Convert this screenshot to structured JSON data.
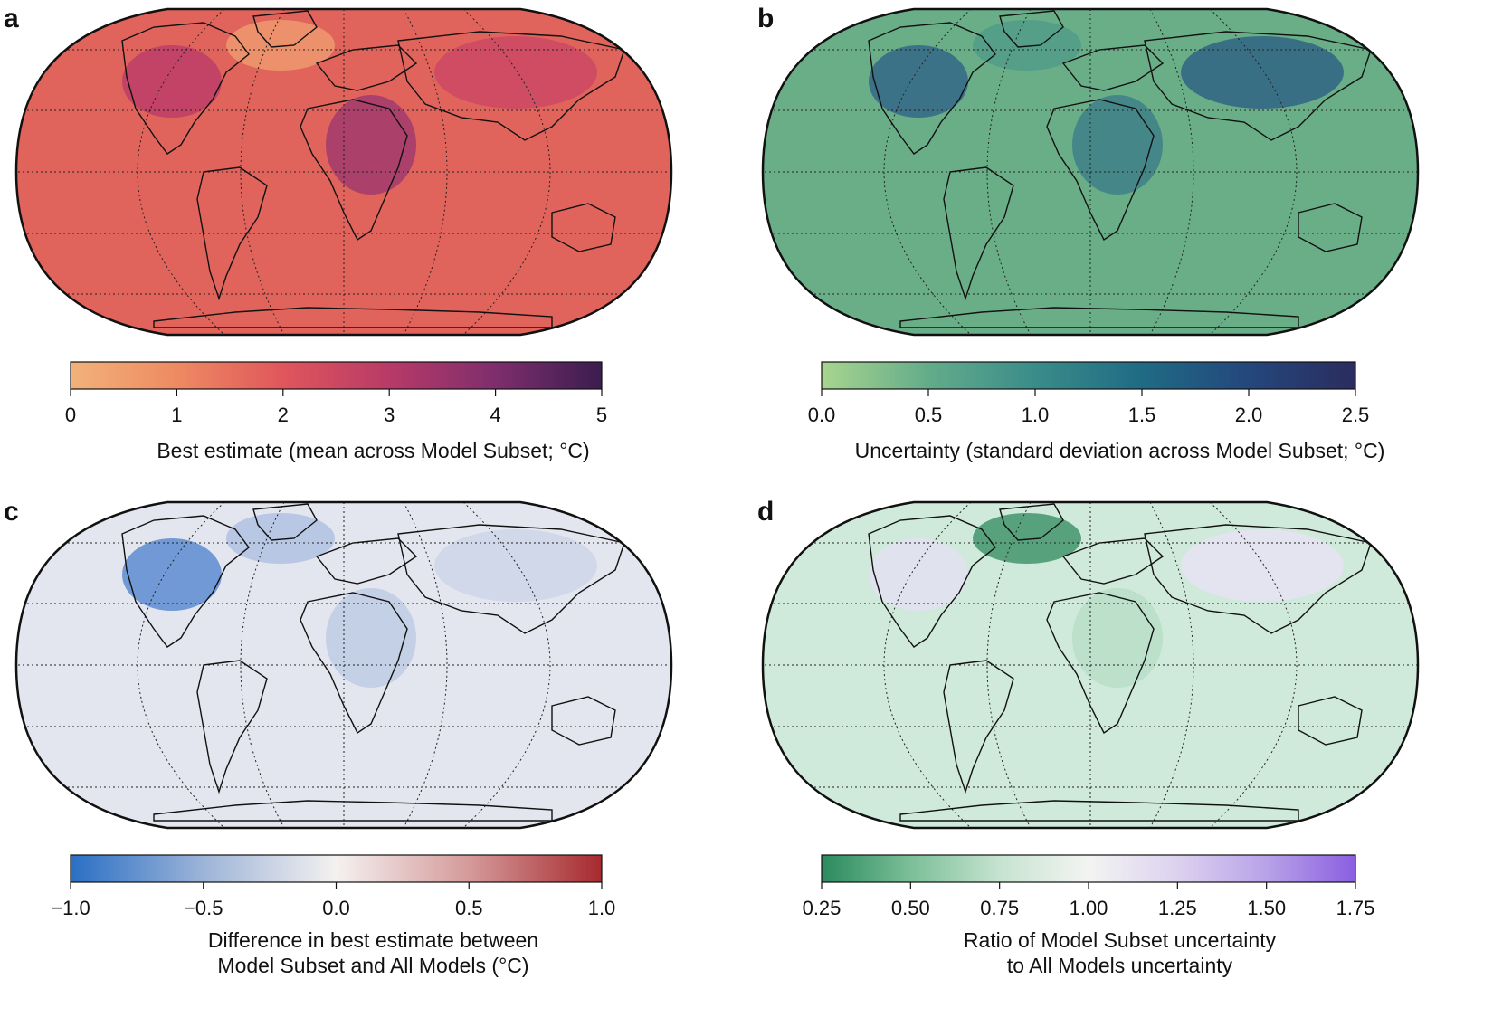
{
  "panels": [
    {
      "letter": "a",
      "colorbar": {
        "ticks": [
          "0",
          "1",
          "2",
          "3",
          "4",
          "5"
        ],
        "colors": [
          "#f2b27a",
          "#ee8a62",
          "#e0565c",
          "#b83a67",
          "#7e2e6d",
          "#3b1d4f"
        ],
        "label_lines": [
          "Best estimate (mean across Model Subset; °C)"
        ]
      },
      "map_base_color": "#e0645c",
      "map_features": [
        {
          "color": "#b8386a"
        },
        {
          "color": "#9a3470"
        },
        {
          "color": "#f0a070"
        },
        {
          "color": "#c94464"
        }
      ]
    },
    {
      "letter": "b",
      "colorbar": {
        "ticks": [
          "0.0",
          "0.5",
          "1.0",
          "1.5",
          "2.0",
          "2.5"
        ],
        "colors": [
          "#a8d58e",
          "#63ac8a",
          "#3a8c8a",
          "#1f6b84",
          "#24477c",
          "#2b2c5e"
        ],
        "label_lines": [
          "Uncertainty (standard deviation across Model Subset; °C)"
        ]
      },
      "map_base_color": "#6aae88",
      "map_features": [
        {
          "color": "#2e5e88"
        },
        {
          "color": "#3a7a8a"
        },
        {
          "color": "#4f9a88"
        },
        {
          "color": "#2a5a84"
        }
      ]
    },
    {
      "letter": "c",
      "colorbar": {
        "ticks": [
          "−1.0",
          "−0.5",
          "0.0",
          "0.5",
          "1.0"
        ],
        "colors": [
          "#2a6fc4",
          "#9db4d8",
          "#f4f1f0",
          "#d59a9a",
          "#a62a2e"
        ],
        "label_lines": [
          "Difference in best estimate between",
          "Model Subset and All Models (°C)"
        ]
      },
      "map_base_color": "#e3e6ee",
      "map_features": [
        {
          "color": "#4a7fcc"
        },
        {
          "color": "#b9c8e2"
        },
        {
          "color": "#a9bce0"
        },
        {
          "color": "#c9d3e7"
        }
      ]
    },
    {
      "letter": "d",
      "colorbar": {
        "ticks": [
          "0.25",
          "0.50",
          "0.75",
          "1.00",
          "1.25",
          "1.50",
          "1.75"
        ],
        "colors": [
          "#2b8a5e",
          "#7bbf98",
          "#c6e3d0",
          "#f3f4f2",
          "#dcd2ef",
          "#b8a2e8",
          "#8a5fe0"
        ],
        "label_lines": [
          "Ratio of Model Subset uncertainty",
          "to All Models uncertainty"
        ]
      },
      "map_base_color": "#cfe9da",
      "map_features": [
        {
          "color": "#e6e0f4"
        },
        {
          "color": "#b6dcc4"
        },
        {
          "color": "#2f8a5c"
        },
        {
          "color": "#e9e2f5"
        }
      ]
    }
  ]
}
